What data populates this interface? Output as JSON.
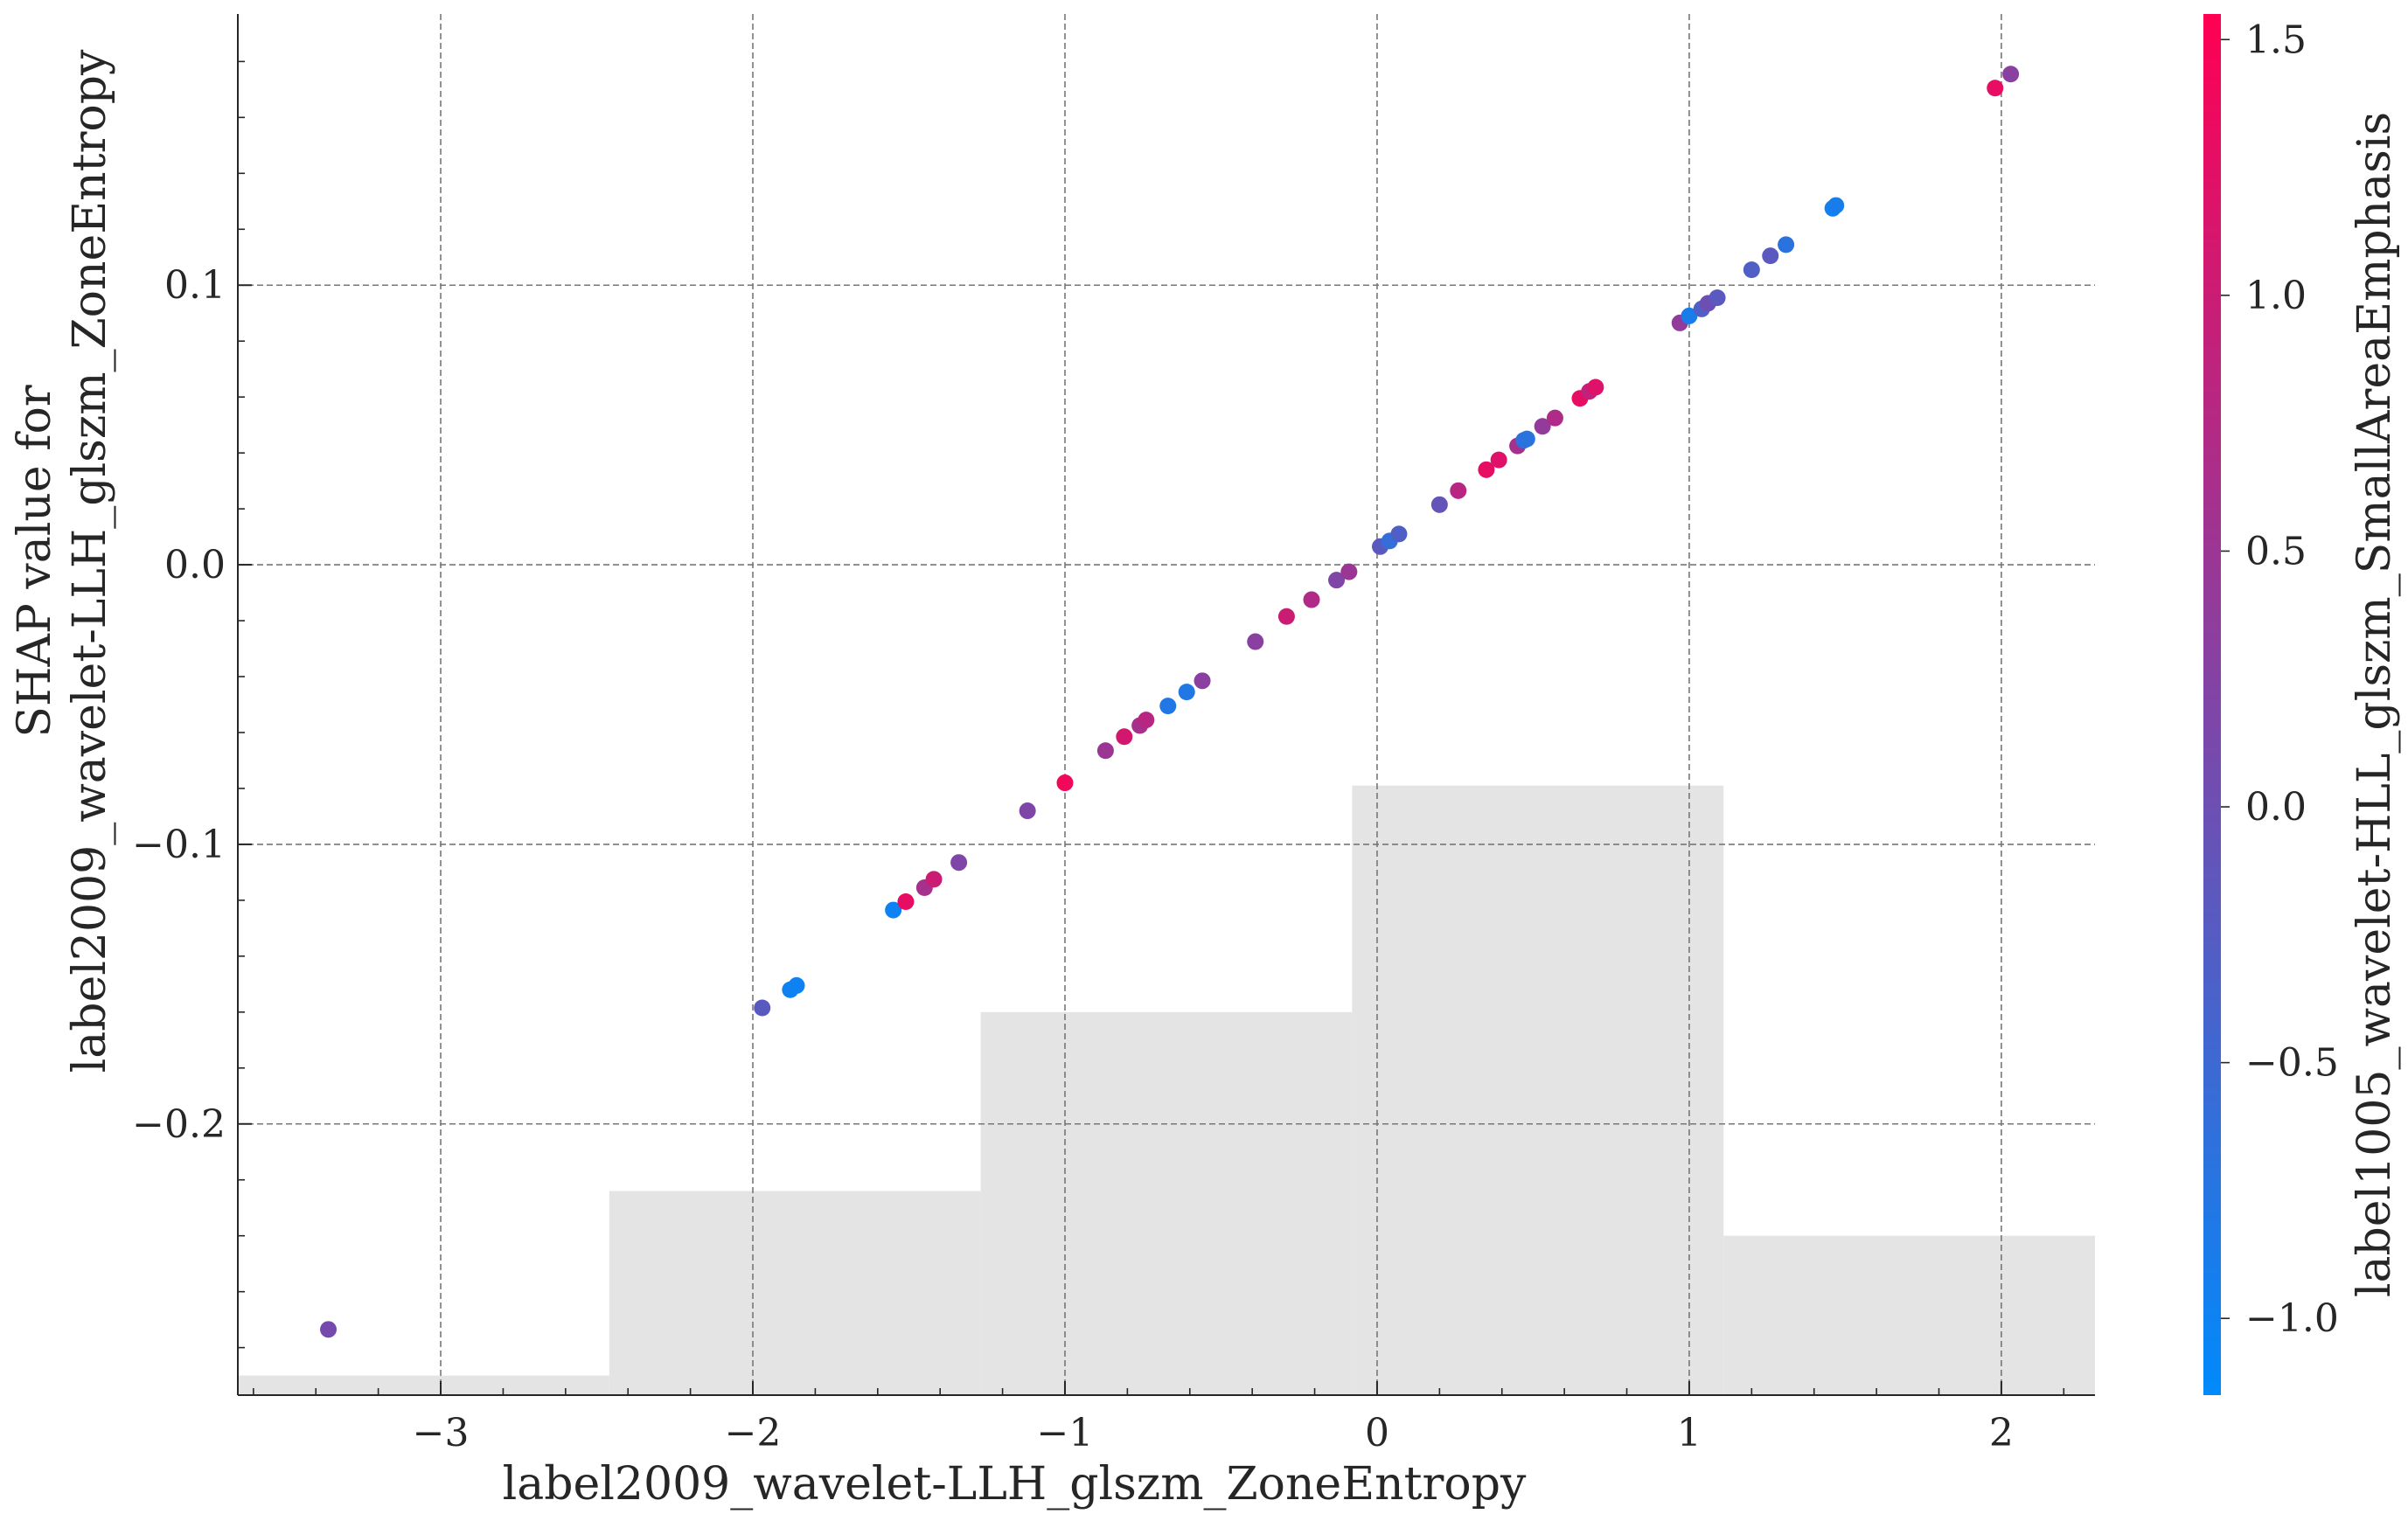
{
  "chart_data": {
    "type": "scatter",
    "xlabel": "label2009_wavelet-LLH_glszm_ZoneEntropy",
    "ylabel_lines": [
      "SHAP value for",
      "label2009_wavelet-LLH_glszm_ZoneEntropy"
    ],
    "xlim": [
      -3.65,
      2.3
    ],
    "ylim": [
      -0.297,
      0.197
    ],
    "xticks": [
      {
        "value": -3,
        "label": "−3"
      },
      {
        "value": -2,
        "label": "−2"
      },
      {
        "value": -1,
        "label": "−1"
      },
      {
        "value": 0,
        "label": "0"
      },
      {
        "value": 1,
        "label": "1"
      },
      {
        "value": 2,
        "label": "2"
      }
    ],
    "yticks": [
      {
        "value": -0.2,
        "label": "−0.2"
      },
      {
        "value": -0.1,
        "label": "−0.1"
      },
      {
        "value": 0.0,
        "label": "0.0"
      },
      {
        "value": 0.1,
        "label": "0.1"
      }
    ],
    "grid": true,
    "histogram": {
      "color": "#e4e4e4",
      "bins": [
        {
          "x0": -3.65,
          "x1": -2.46,
          "height": 0.007
        },
        {
          "x0": -2.46,
          "x1": -1.27,
          "height": 0.073
        },
        {
          "x0": -1.27,
          "x1": -0.08,
          "height": 0.137
        },
        {
          "x0": -0.08,
          "x1": 1.11,
          "height": 0.218
        },
        {
          "x0": 1.11,
          "x1": 2.3,
          "height": 0.057
        }
      ]
    },
    "colorbar": {
      "label": "label1005_wavelet-HLL_glszm_SmallAreaEmphasis",
      "range": [
        -1.15,
        1.55
      ],
      "low_color": "#008afb",
      "high_color": "#ff0052",
      "ticks": [
        {
          "value": -1.0,
          "label": "−1.0"
        },
        {
          "value": -0.5,
          "label": "−0.5"
        },
        {
          "value": 0.0,
          "label": "0.0"
        },
        {
          "value": 0.5,
          "label": "0.5"
        },
        {
          "value": 1.0,
          "label": "1.0"
        },
        {
          "value": 1.5,
          "label": "1.5"
        }
      ]
    },
    "points": [
      {
        "x": -3.36,
        "y": -0.2735,
        "c": 0.1
      },
      {
        "x": -1.97,
        "y": -0.1585,
        "c": -0.2
      },
      {
        "x": -1.88,
        "y": -0.152,
        "c": -1.0
      },
      {
        "x": -1.86,
        "y": -0.1505,
        "c": -1.0
      },
      {
        "x": -1.55,
        "y": -0.1235,
        "c": -1.0
      },
      {
        "x": -1.51,
        "y": -0.1205,
        "c": 1.3
      },
      {
        "x": -1.45,
        "y": -0.1155,
        "c": 0.6
      },
      {
        "x": -1.42,
        "y": -0.1125,
        "c": 1.0
      },
      {
        "x": -1.34,
        "y": -0.1065,
        "c": 0.2
      },
      {
        "x": -1.12,
        "y": -0.088,
        "c": 0.2
      },
      {
        "x": -1.0,
        "y": -0.078,
        "c": 1.4
      },
      {
        "x": -0.87,
        "y": -0.0665,
        "c": 0.5
      },
      {
        "x": -0.81,
        "y": -0.0615,
        "c": 1.1
      },
      {
        "x": -0.76,
        "y": -0.0575,
        "c": 0.6
      },
      {
        "x": -0.74,
        "y": -0.0555,
        "c": 0.8
      },
      {
        "x": -0.67,
        "y": -0.0505,
        "c": -0.8
      },
      {
        "x": -0.61,
        "y": -0.0455,
        "c": -0.8
      },
      {
        "x": -0.56,
        "y": -0.0415,
        "c": 0.3
      },
      {
        "x": -0.39,
        "y": -0.0275,
        "c": 0.3
      },
      {
        "x": -0.29,
        "y": -0.0185,
        "c": 1.0
      },
      {
        "x": -0.21,
        "y": -0.0125,
        "c": 0.7
      },
      {
        "x": -0.13,
        "y": -0.0055,
        "c": 0.2
      },
      {
        "x": -0.09,
        "y": -0.0025,
        "c": 0.5
      },
      {
        "x": 0.01,
        "y": 0.0065,
        "c": -0.2
      },
      {
        "x": 0.04,
        "y": 0.0085,
        "c": -0.6
      },
      {
        "x": 0.07,
        "y": 0.011,
        "c": -0.3
      },
      {
        "x": 0.2,
        "y": 0.0215,
        "c": -0.1
      },
      {
        "x": 0.26,
        "y": 0.0265,
        "c": 0.8
      },
      {
        "x": 0.35,
        "y": 0.034,
        "c": 1.3
      },
      {
        "x": 0.39,
        "y": 0.0375,
        "c": 1.2
      },
      {
        "x": 0.45,
        "y": 0.0425,
        "c": 0.6
      },
      {
        "x": 0.47,
        "y": 0.0445,
        "c": -0.6
      },
      {
        "x": 0.48,
        "y": 0.045,
        "c": -0.7
      },
      {
        "x": 0.53,
        "y": 0.0495,
        "c": 0.4
      },
      {
        "x": 0.57,
        "y": 0.0525,
        "c": 0.7
      },
      {
        "x": 0.65,
        "y": 0.0595,
        "c": 1.3
      },
      {
        "x": 0.68,
        "y": 0.062,
        "c": 0.9
      },
      {
        "x": 0.7,
        "y": 0.0635,
        "c": 1.2
      },
      {
        "x": 0.97,
        "y": 0.0865,
        "c": 0.4
      },
      {
        "x": 1.0,
        "y": 0.089,
        "c": -0.9
      },
      {
        "x": 1.04,
        "y": 0.0915,
        "c": -0.3
      },
      {
        "x": 1.06,
        "y": 0.0935,
        "c": 0.0
      },
      {
        "x": 1.09,
        "y": 0.0955,
        "c": -0.2
      },
      {
        "x": 1.2,
        "y": 0.1055,
        "c": -0.3
      },
      {
        "x": 1.26,
        "y": 0.1105,
        "c": -0.2
      },
      {
        "x": 1.31,
        "y": 0.1145,
        "c": -0.7
      },
      {
        "x": 1.46,
        "y": 0.1275,
        "c": -1.0
      },
      {
        "x": 1.47,
        "y": 0.1285,
        "c": -0.9
      },
      {
        "x": 1.98,
        "y": 0.1705,
        "c": 1.3
      },
      {
        "x": 2.03,
        "y": 0.1755,
        "c": 0.3
      }
    ]
  }
}
